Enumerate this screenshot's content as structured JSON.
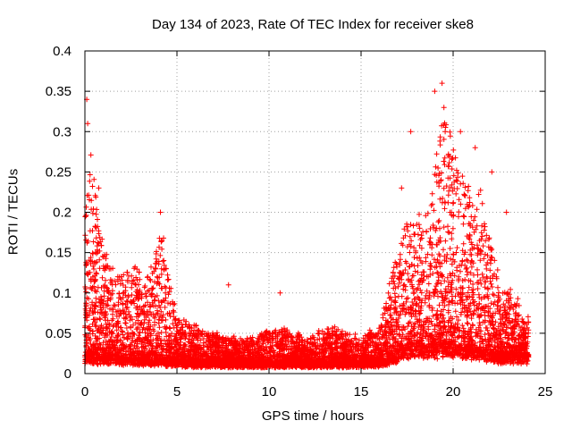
{
  "chart_data": {
    "type": "scatter",
    "title": "Day 134 of 2023, Rate Of TEC Index for receiver ske8",
    "xlabel": "GPS time / hours",
    "ylabel": "ROTI / TECUs",
    "xlim": [
      0,
      25
    ],
    "ylim": [
      0,
      0.4
    ],
    "xticks": [
      "0",
      "5",
      "10",
      "15",
      "20",
      "25"
    ],
    "yticks": [
      "0",
      "0.05",
      "0.1",
      "0.15",
      "0.2",
      "0.25",
      "0.3",
      "0.35",
      "0.4"
    ],
    "grid": true,
    "marker": "+",
    "color": "#ff0000",
    "envelope": {
      "x": [
        0,
        0.3,
        0.7,
        1.3,
        2.0,
        2.6,
        3.2,
        4.2,
        5.0,
        6.0,
        7.0,
        8.0,
        9.0,
        10.5,
        12.0,
        13.5,
        15.0,
        16.0,
        16.8,
        17.5,
        18.5,
        19.5,
        20.5,
        21.5,
        22.5,
        23.5,
        24.0
      ],
      "y_max": [
        0.2,
        0.3,
        0.2,
        0.14,
        0.12,
        0.15,
        0.11,
        0.18,
        0.07,
        0.06,
        0.05,
        0.045,
        0.045,
        0.06,
        0.045,
        0.06,
        0.045,
        0.06,
        0.14,
        0.2,
        0.2,
        0.33,
        0.24,
        0.23,
        0.12,
        0.09,
        0.07
      ],
      "y_base": [
        0.02,
        0.02,
        0.018,
        0.018,
        0.016,
        0.016,
        0.015,
        0.015,
        0.013,
        0.012,
        0.012,
        0.012,
        0.012,
        0.012,
        0.012,
        0.012,
        0.012,
        0.013,
        0.02,
        0.03,
        0.03,
        0.03,
        0.03,
        0.025,
        0.02,
        0.02,
        0.02
      ]
    },
    "outliers": [
      {
        "x": 0.1,
        "y": 0.34
      },
      {
        "x": 0.15,
        "y": 0.31
      },
      {
        "x": 0.75,
        "y": 0.23
      },
      {
        "x": 4.1,
        "y": 0.2
      },
      {
        "x": 7.8,
        "y": 0.11
      },
      {
        "x": 10.6,
        "y": 0.1
      },
      {
        "x": 17.2,
        "y": 0.23
      },
      {
        "x": 17.7,
        "y": 0.3
      },
      {
        "x": 19.0,
        "y": 0.35
      },
      {
        "x": 19.4,
        "y": 0.36
      },
      {
        "x": 19.5,
        "y": 0.33
      },
      {
        "x": 20.4,
        "y": 0.3
      },
      {
        "x": 21.2,
        "y": 0.28
      },
      {
        "x": 22.1,
        "y": 0.25
      },
      {
        "x": 22.9,
        "y": 0.2
      }
    ]
  }
}
